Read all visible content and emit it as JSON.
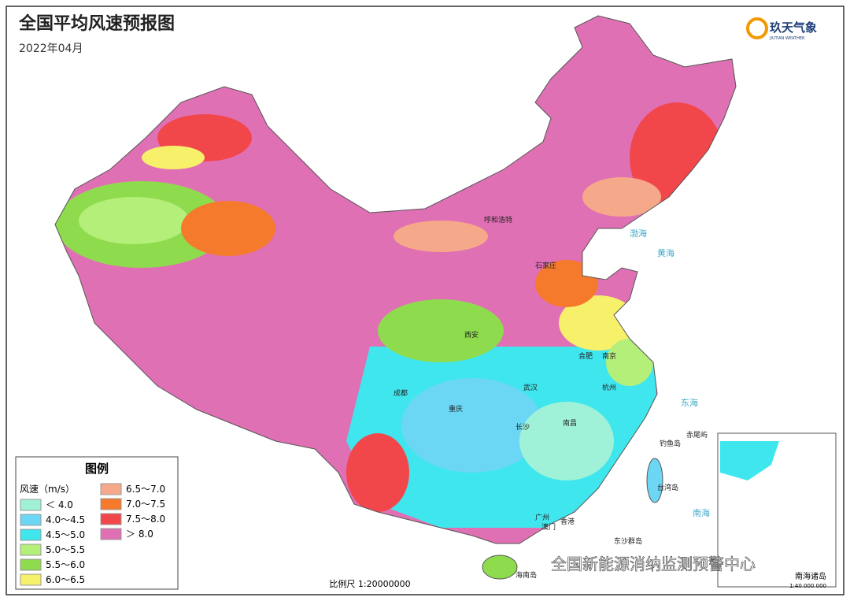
{
  "title": "全国平均风速预报图",
  "subtitle": "2022年04月",
  "logo": {
    "name": "玖天气象",
    "sub": "JIUTIAN WEATHER"
  },
  "legend": {
    "title": "图例",
    "unit_label": "风速（m/s）",
    "items": [
      {
        "label": "＜ 4.0",
        "color": "#9ff2d8"
      },
      {
        "label": "4.0～4.5",
        "color": "#6cd7f5"
      },
      {
        "label": "4.5～5.0",
        "color": "#3fe6ee"
      },
      {
        "label": "5.0～5.5",
        "color": "#b4ef7a"
      },
      {
        "label": "5.5～6.0",
        "color": "#8fdb4e"
      },
      {
        "label": "6.0～6.5",
        "color": "#f7f06a"
      },
      {
        "label": "6.5～7.0",
        "color": "#f6a98a"
      },
      {
        "label": "7.0～7.5",
        "color": "#f57a2c"
      },
      {
        "label": "7.5～8.0",
        "color": "#f2474a"
      },
      {
        "label": "＞ 8.0",
        "color": "#e070b4"
      }
    ]
  },
  "scale": "比例尺 1:20000000",
  "inset": {
    "label": "南海诸岛",
    "scale": "1:40 000 000"
  },
  "places": [
    "呼和浩特",
    "石家庄",
    "西安",
    "成都",
    "重庆",
    "武汉",
    "长沙",
    "南昌",
    "合肥",
    "南京",
    "杭州",
    "广州",
    "香港",
    "澳门",
    "台湾岛",
    "海南岛",
    "东沙群岛",
    "钓鱼岛",
    "赤尾屿",
    "渤海",
    "黄海",
    "东海",
    "南海"
  ],
  "watermark": "全国新能源消纳监测预警中心"
}
